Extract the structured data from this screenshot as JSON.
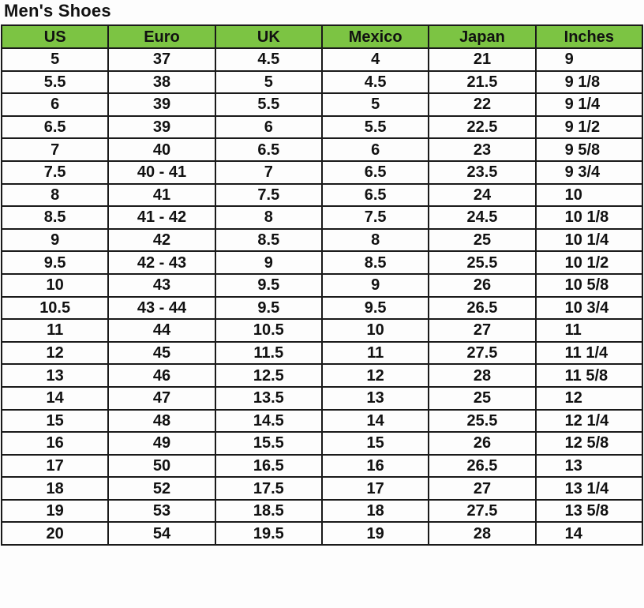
{
  "title": "Men's Shoes",
  "header_color": "#7cc443",
  "columns": [
    "US",
    "Euro",
    "UK",
    "Mexico",
    "Japan",
    "Inches"
  ],
  "rows": [
    [
      "5",
      "37",
      "4.5",
      "4",
      "21",
      "9"
    ],
    [
      "5.5",
      "38",
      "5",
      "4.5",
      "21.5",
      "9 1/8"
    ],
    [
      "6",
      "39",
      "5.5",
      "5",
      "22",
      "9 1/4"
    ],
    [
      "6.5",
      "39",
      "6",
      "5.5",
      "22.5",
      "9 1/2"
    ],
    [
      "7",
      "40",
      "6.5",
      "6",
      "23",
      "9 5/8"
    ],
    [
      "7.5",
      "40 - 41",
      "7",
      "6.5",
      "23.5",
      "9 3/4"
    ],
    [
      "8",
      "41",
      "7.5",
      "6.5",
      "24",
      "10"
    ],
    [
      "8.5",
      "41 - 42",
      "8",
      "7.5",
      "24.5",
      "10 1/8"
    ],
    [
      "9",
      "42",
      "8.5",
      "8",
      "25",
      "10 1/4"
    ],
    [
      "9.5",
      "42 - 43",
      "9",
      "8.5",
      "25.5",
      "10 1/2"
    ],
    [
      "10",
      "43",
      "9.5",
      "9",
      "26",
      "10 5/8"
    ],
    [
      "10.5",
      "43 - 44",
      "9.5",
      "9.5",
      "26.5",
      "10 3/4"
    ],
    [
      "11",
      "44",
      "10.5",
      "10",
      "27",
      "11"
    ],
    [
      "12",
      "45",
      "11.5",
      "11",
      "27.5",
      "11 1/4"
    ],
    [
      "13",
      "46",
      "12.5",
      "12",
      "28",
      "11 5/8"
    ],
    [
      "14",
      "47",
      "13.5",
      "13",
      "25",
      "12"
    ],
    [
      "15",
      "48",
      "14.5",
      "14",
      "25.5",
      "12 1/4"
    ],
    [
      "16",
      "49",
      "15.5",
      "15",
      "26",
      "12 5/8"
    ],
    [
      "17",
      "50",
      "16.5",
      "16",
      "26.5",
      "13"
    ],
    [
      "18",
      "52",
      "17.5",
      "17",
      "27",
      "13 1/4"
    ],
    [
      "19",
      "53",
      "18.5",
      "18",
      "27.5",
      "13 5/8"
    ],
    [
      "20",
      "54",
      "19.5",
      "19",
      "28",
      "14"
    ]
  ]
}
